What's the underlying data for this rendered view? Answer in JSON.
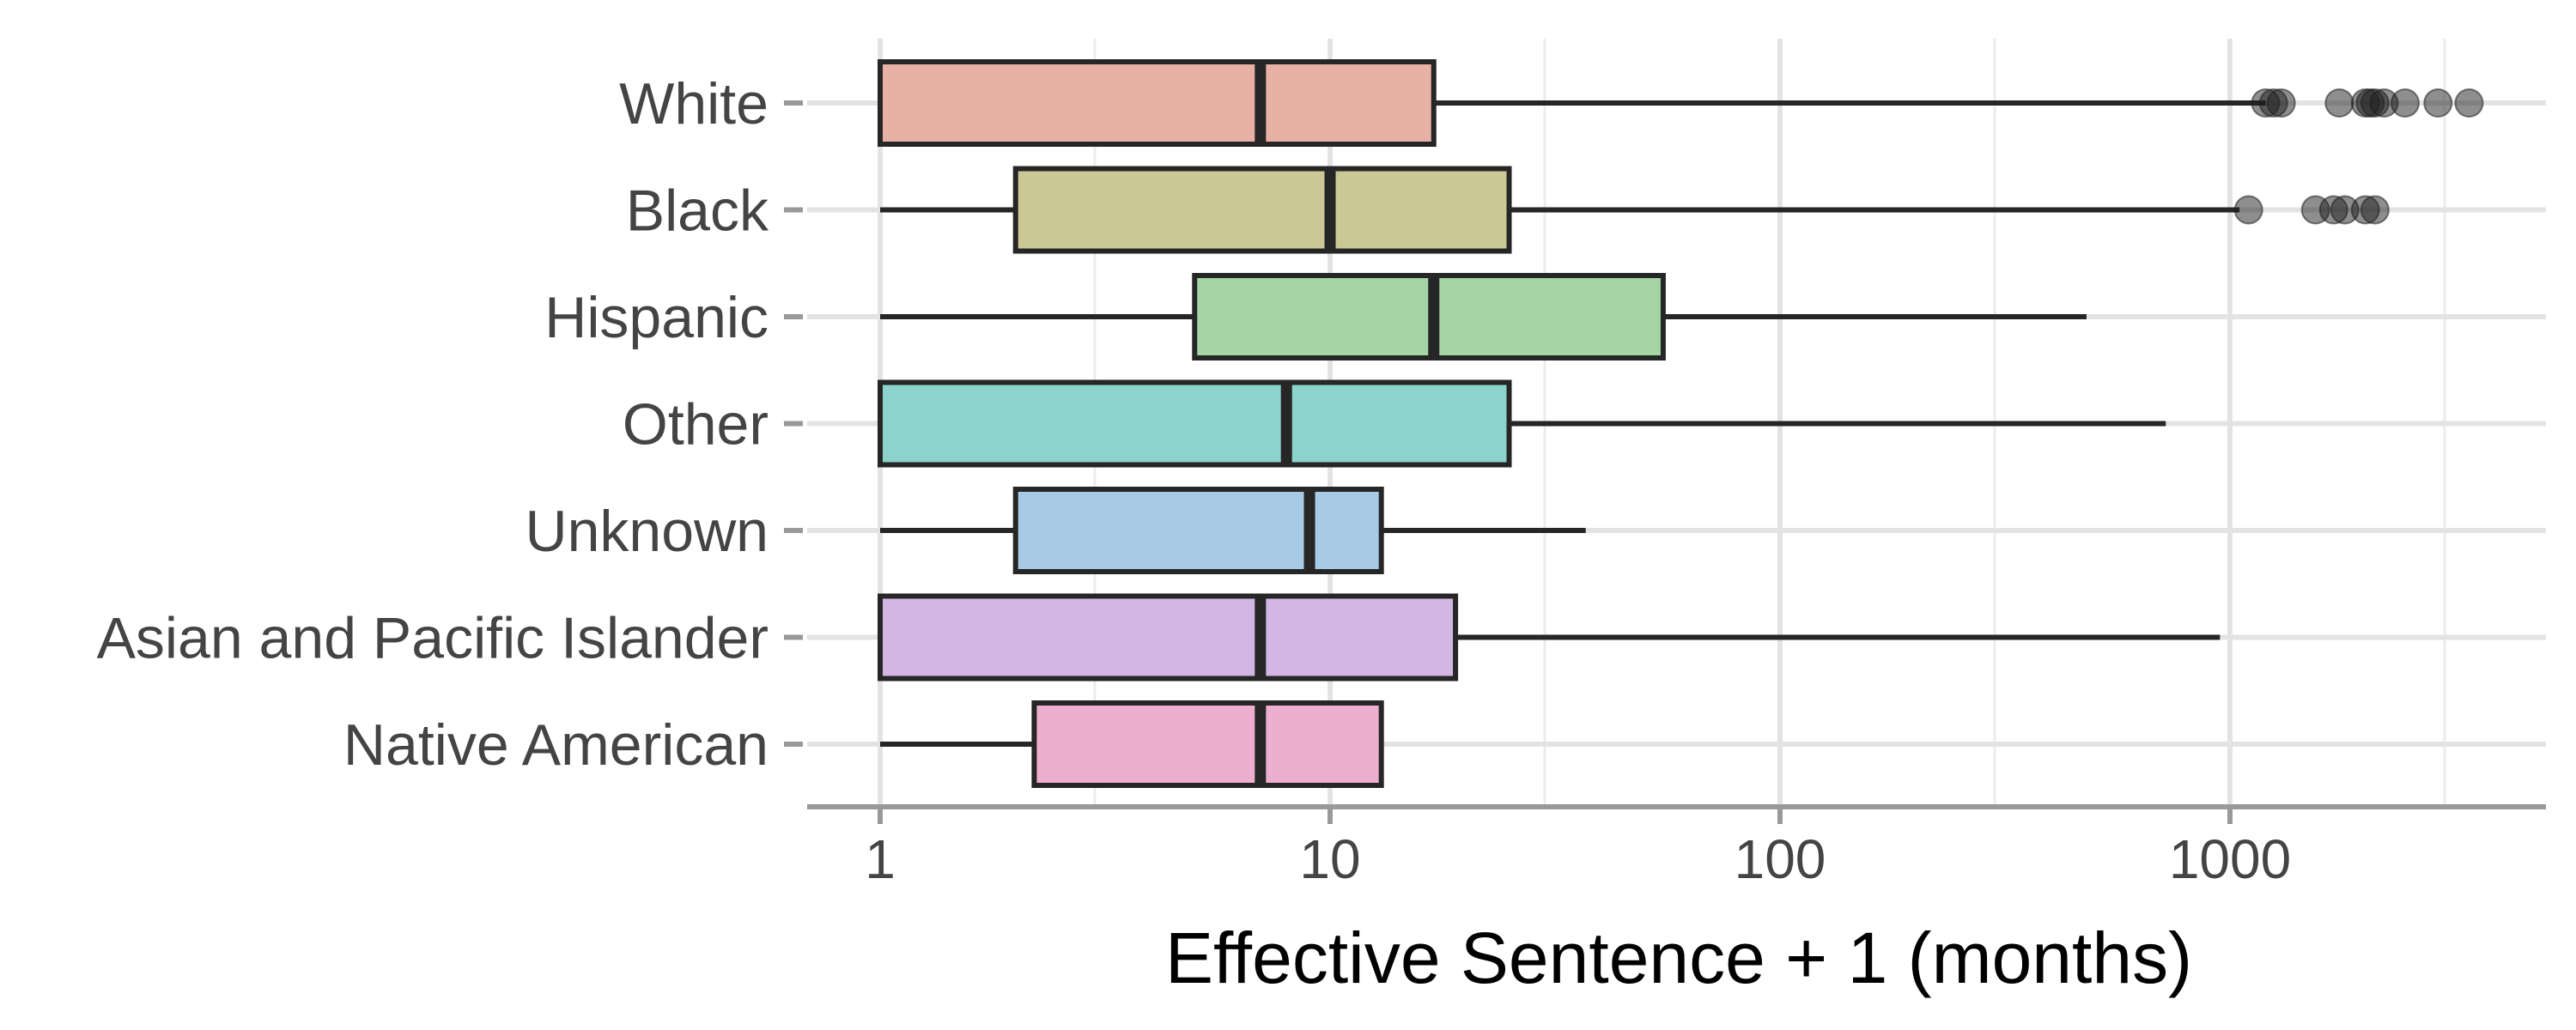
{
  "chart_data": {
    "type": "boxplot",
    "orientation": "horizontal",
    "xlabel": "Effective Sentence + 1 (months)",
    "ylabel": "",
    "x_scale": "log10",
    "xlim": [
      0.7,
      5000
    ],
    "x_ticks": [
      1,
      10,
      100,
      1000
    ],
    "x_tick_labels": [
      "1",
      "10",
      "100",
      "1000"
    ],
    "grid": true,
    "legend": "none",
    "categories": [
      "White",
      "Black",
      "Hispanic",
      "Other",
      "Unknown",
      "Asian and Pacific Islander",
      "Native American"
    ],
    "series": [
      {
        "category": "White",
        "color": "#E7B1A5",
        "whisker_low": 1,
        "q1": 1,
        "median": 7,
        "q3": 17,
        "whisker_high": 1200,
        "outliers": [
          1200,
          1250,
          1300,
          1750,
          2000,
          2050,
          2100,
          2200,
          2450,
          2900,
          3400
        ]
      },
      {
        "category": "Black",
        "color": "#CCC896",
        "whisker_low": 1,
        "q1": 2,
        "median": 10,
        "q3": 25,
        "whisker_high": 1050,
        "outliers": [
          1100,
          1550,
          1700,
          1800,
          2000,
          2100
        ]
      },
      {
        "category": "Hispanic",
        "color": "#A5D4A7",
        "whisker_low": 1,
        "q1": 5,
        "median": 17,
        "q3": 55,
        "whisker_high": 480,
        "outliers": []
      },
      {
        "category": "Other",
        "color": "#8CD3CB",
        "whisker_low": 1,
        "q1": 1,
        "median": 8,
        "q3": 25,
        "whisker_high": 720,
        "outliers": []
      },
      {
        "category": "Unknown",
        "color": "#A7CBE7",
        "whisker_low": 1,
        "q1": 2,
        "median": 9,
        "q3": 13,
        "whisker_high": 37,
        "outliers": []
      },
      {
        "category": "Asian and Pacific Islander",
        "color": "#D2B7E5",
        "whisker_low": 1,
        "q1": 1,
        "median": 7,
        "q3": 19,
        "whisker_high": 950,
        "outliers": []
      },
      {
        "category": "Native American",
        "color": "#EDAFCF",
        "whisker_low": 1,
        "q1": 2.2,
        "median": 7,
        "q3": 13,
        "whisker_high": 13,
        "outliers": []
      }
    ]
  }
}
